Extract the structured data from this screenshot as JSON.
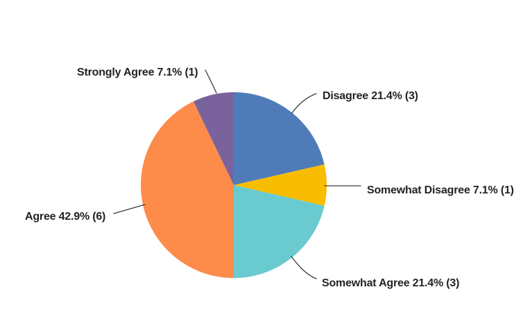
{
  "chart_data": {
    "type": "pie",
    "title": "",
    "direction": "clockwise",
    "start_angle_deg": 0,
    "legend_position": "callout-labels",
    "slices": [
      {
        "label": "Disagree",
        "percent": 21.4,
        "count": 3,
        "display": "Disagree 21.4% (3)",
        "color": "#4F7CB8"
      },
      {
        "label": "Somewhat Disagree",
        "percent": 7.1,
        "count": 1,
        "display": "Somewhat Disagree 7.1% (1)",
        "color": "#F8BD00"
      },
      {
        "label": "Somewhat Agree",
        "percent": 21.4,
        "count": 3,
        "display": "Somewhat Agree 21.4% (3)",
        "color": "#69CACF"
      },
      {
        "label": "Agree",
        "percent": 42.9,
        "count": 6,
        "display": "Agree 42.9% (6)",
        "color": "#FD8C4B"
      },
      {
        "label": "Strongly Agree",
        "percent": 7.1,
        "count": 1,
        "display": "Strongly Agree 7.1% (1)",
        "color": "#7A639D"
      }
    ],
    "leader_line_color": "#3a3a3a"
  }
}
